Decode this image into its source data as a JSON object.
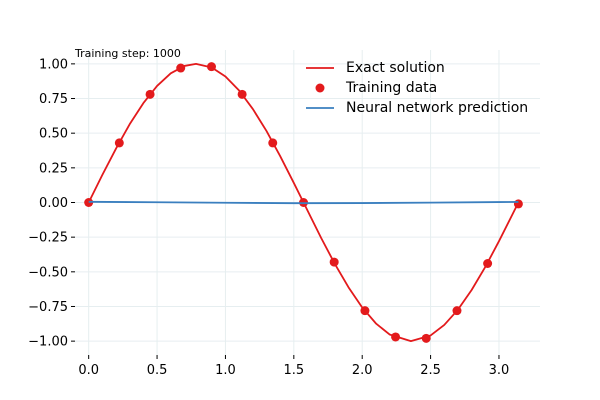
{
  "chart_data": {
    "type": "line",
    "annotation": "Training step: 1000",
    "xlim": [
      -0.1,
      3.3
    ],
    "ylim": [
      -1.1,
      1.1
    ],
    "x_ticks": [
      0.0,
      0.5,
      1.0,
      1.5,
      2.0,
      2.5,
      3.0
    ],
    "x_tick_labels": [
      "0.0",
      "0.5",
      "1.0",
      "1.5",
      "2.0",
      "2.5",
      "3.0"
    ],
    "y_ticks": [
      1.0,
      0.75,
      0.5,
      0.25,
      0.0,
      -0.25,
      -0.5,
      -0.75,
      -1.0
    ],
    "y_tick_labels": [
      "1.00",
      "0.75",
      "0.50",
      "0.25",
      "0.00",
      "−0.25",
      "−0.50",
      "−0.75",
      "−1.00"
    ],
    "grid": true,
    "legend_position": "top-right",
    "series": [
      {
        "name": "Exact solution",
        "kind": "line",
        "color": "#e31a1c",
        "x": [
          0.0,
          0.1,
          0.2,
          0.3,
          0.4,
          0.5,
          0.6,
          0.7,
          0.785,
          0.9,
          1.0,
          1.1,
          1.2,
          1.3,
          1.4,
          1.5,
          1.571,
          1.7,
          1.8,
          1.9,
          2.0,
          2.1,
          2.2,
          2.356,
          2.5,
          2.6,
          2.7,
          2.8,
          2.9,
          3.0,
          3.1,
          3.142
        ],
        "y": [
          0.0,
          0.199,
          0.389,
          0.565,
          0.717,
          0.841,
          0.932,
          0.985,
          1.0,
          0.974,
          0.909,
          0.808,
          0.675,
          0.516,
          0.335,
          0.141,
          0.0,
          -0.256,
          -0.443,
          -0.612,
          -0.757,
          -0.872,
          -0.952,
          -1.0,
          -0.959,
          -0.883,
          -0.773,
          -0.631,
          -0.465,
          -0.279,
          -0.083,
          0.0
        ]
      },
      {
        "name": "Training data",
        "kind": "scatter",
        "color": "#e31a1c",
        "x": [
          0.0,
          0.224,
          0.449,
          0.673,
          0.898,
          1.122,
          1.346,
          1.571,
          1.795,
          2.02,
          2.244,
          2.468,
          2.693,
          2.917,
          3.142
        ],
        "y": [
          0.0,
          0.43,
          0.78,
          0.97,
          0.98,
          0.78,
          0.43,
          0.0,
          -0.43,
          -0.78,
          -0.97,
          -0.98,
          -0.78,
          -0.44,
          -0.01
        ]
      },
      {
        "name": "Neural network prediction",
        "kind": "line",
        "color": "#3a7fbf",
        "x": [
          0.0,
          0.5,
          1.0,
          1.5,
          2.0,
          2.5,
          3.0,
          3.142
        ],
        "y": [
          0.005,
          0.002,
          -0.002,
          -0.005,
          -0.004,
          -0.001,
          0.003,
          0.004
        ]
      }
    ]
  }
}
